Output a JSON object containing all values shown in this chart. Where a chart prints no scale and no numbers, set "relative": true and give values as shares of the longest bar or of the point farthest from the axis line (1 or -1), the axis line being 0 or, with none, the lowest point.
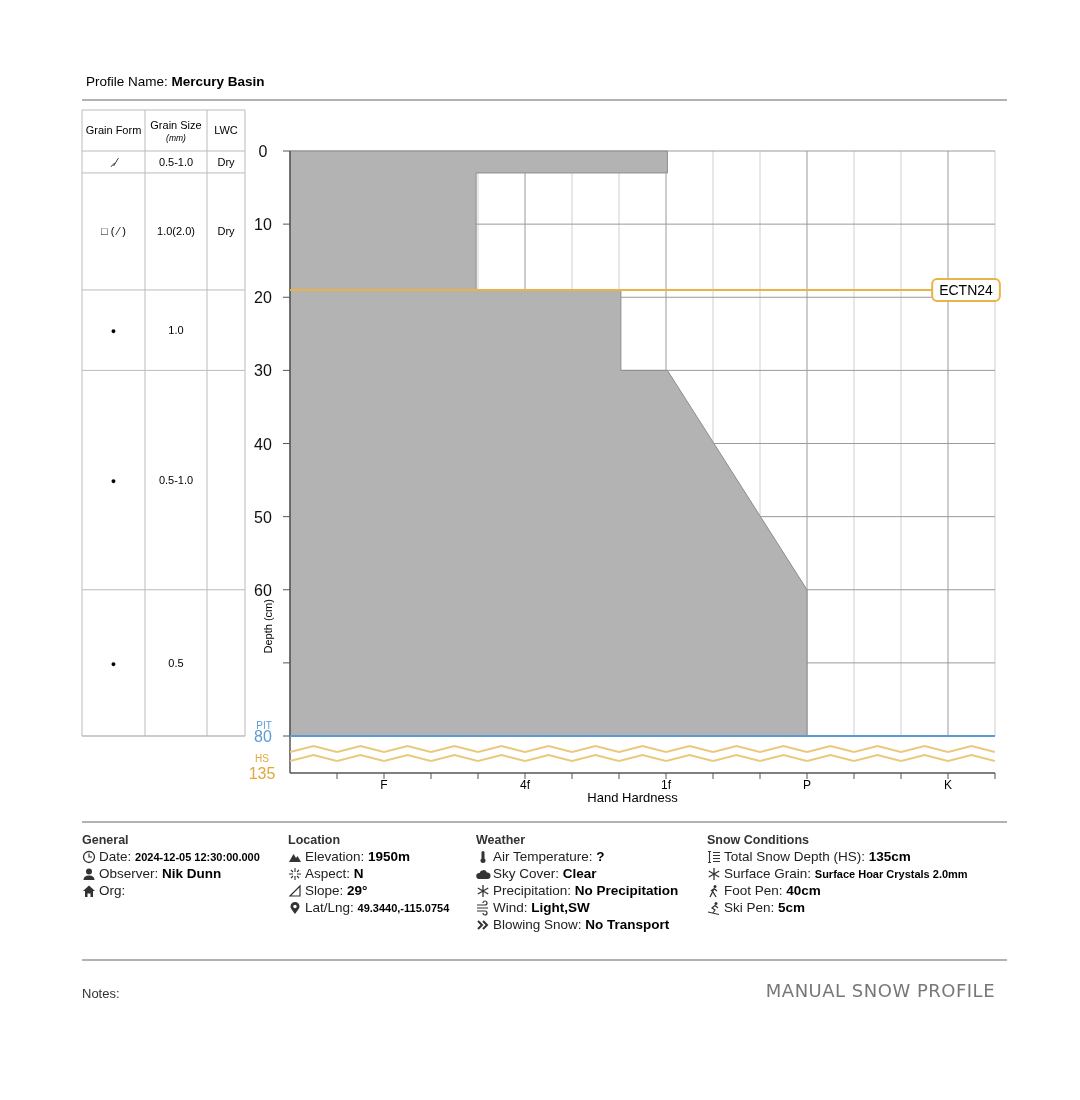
{
  "chart_data": [
    {
      "type": "other",
      "categories": [
        "Grain Form",
        "Grain Size (mm)",
        "LWC"
      ],
      "cell_labels": [
        [
          "⸝⁄",
          "0.5-1.0",
          "Dry"
        ],
        [
          "□ ( ⁄ )",
          "1.0(2.0)",
          "Dry"
        ],
        [
          "●",
          "1.0",
          null
        ],
        [
          "●",
          "0.5-1.0",
          null
        ],
        [
          "●",
          "0.5",
          null
        ]
      ]
    },
    {
      "type": "area",
      "orientation": "horizontal",
      "relative": true,
      "title": "Profile Name: Mercury Basin",
      "xlabel": "Hand Hardness",
      "ylabel": "Depth (cm)",
      "ylim": [
        80,
        0
      ],
      "yticks": [
        0,
        10,
        20,
        30,
        40,
        50,
        60,
        {
          "value": 70,
          "label": null
        },
        80
      ],
      "grid": true,
      "series": [
        {
          "color": "#b3b3b3",
          "x": [
            0,
            3,
            3,
            19,
            19,
            30,
            30,
            60,
            80
          ],
          "values": [
            0.73,
            0.73,
            0.36,
            0.36,
            0.64,
            0.64,
            0.73,
            1,
            1
          ]
        }
      ],
      "ref_lines": [
        {
          "axis": "y",
          "value": 19,
          "label": "ECTN24",
          "color": "#e8b447"
        },
        {
          "axis": "y",
          "value": 80,
          "label": "PIT",
          "color": "#5b9bd5"
        }
      ],
      "annotations": [
        "F",
        "4f",
        "1f",
        "P",
        "K",
        "HS",
        "135"
      ]
    },
    {
      "type": "other",
      "categories": [
        "General",
        "Location",
        "Weather",
        "Snow Conditions"
      ],
      "cell_labels": [
        [
          "Date: 2024-12-05 12:30:00.000",
          "Observer: Nik Dunn",
          "Org:"
        ],
        [
          "Elevation: 1950m",
          "Aspect: N",
          "Slope: 29°",
          "Lat/Lng: 49.3440,-115.0754"
        ],
        [
          "Air Temperature: ?",
          "Sky Cover: Clear",
          "Precipitation: No Precipitation",
          "Wind: Light,SW",
          "Blowing Snow: No Transport"
        ],
        [
          "Total Snow Depth (HS): 135cm",
          "Surface Grain: Surface Hoar Crystals 2.0mm",
          "Foot Pen: 40cm",
          "Ski Pen: 5cm"
        ]
      ],
      "annotations": [
        "Notes:",
        "MANUAL SNOW PROFILE"
      ]
    }
  ]
}
